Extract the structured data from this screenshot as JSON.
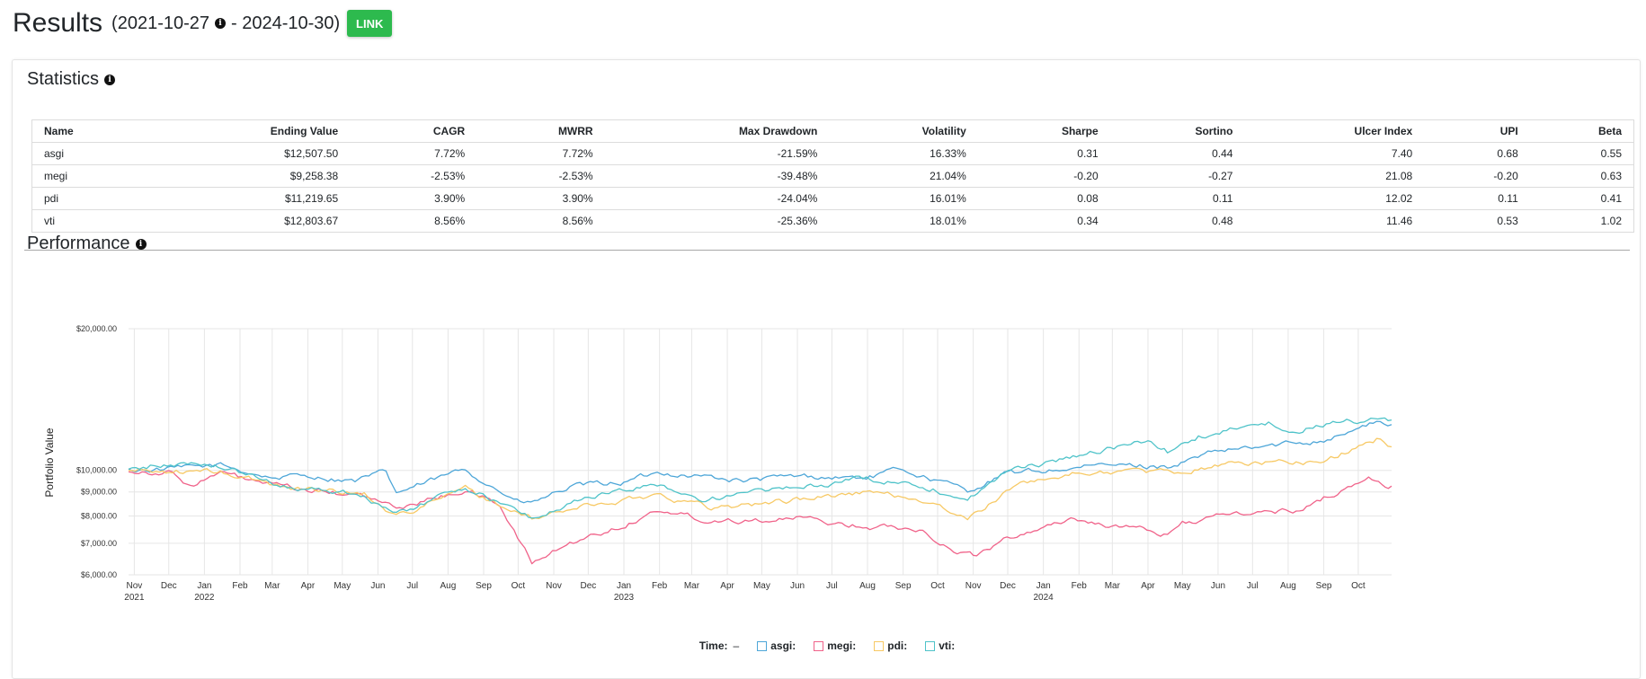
{
  "header": {
    "title": "Results",
    "range_open": "(2021-10-27",
    "range_close": "- 2024-10-30)",
    "link_label": "LINK"
  },
  "statistics": {
    "title": "Statistics",
    "columns": [
      "Name",
      "Ending Value",
      "CAGR",
      "MWRR",
      "Max Drawdown",
      "Volatility",
      "Sharpe",
      "Sortino",
      "Ulcer Index",
      "UPI",
      "Beta"
    ],
    "rows": [
      [
        "asgi",
        "$12,507.50",
        "7.72%",
        "7.72%",
        "-21.59%",
        "16.33%",
        "0.31",
        "0.44",
        "7.40",
        "0.68",
        "0.55"
      ],
      [
        "megi",
        "$9,258.38",
        "-2.53%",
        "-2.53%",
        "-39.48%",
        "21.04%",
        "-0.20",
        "-0.27",
        "21.08",
        "-0.20",
        "0.63"
      ],
      [
        "pdi",
        "$11,219.65",
        "3.90%",
        "3.90%",
        "-24.04%",
        "16.01%",
        "0.08",
        "0.11",
        "12.02",
        "0.11",
        "0.41"
      ],
      [
        "vti",
        "$12,803.67",
        "8.56%",
        "8.56%",
        "-25.36%",
        "18.01%",
        "0.34",
        "0.48",
        "11.46",
        "0.53",
        "1.02"
      ]
    ]
  },
  "performance": {
    "title": "Performance",
    "legend": {
      "time_label": "Time:",
      "time_value": "–",
      "items": [
        {
          "label": "asgi:",
          "color": "#4da6d8"
        },
        {
          "label": "megi:",
          "color": "#f0638a"
        },
        {
          "label": "pdi:",
          "color": "#f7c965"
        },
        {
          "label": "vti:",
          "color": "#4fc3c9"
        }
      ]
    }
  },
  "chart_data": {
    "type": "line",
    "ylabel": "Portfolio Value",
    "yscale": "log",
    "ylim": [
      6000,
      20000
    ],
    "ytick_labels": [
      "$20,000.00",
      "$10,000.00",
      "$9,000.00",
      "$8,000.00",
      "$7,000.00",
      "$6,000.00"
    ],
    "ytick_values": [
      20000,
      10000,
      9000,
      8000,
      7000,
      6000
    ],
    "xlim": [
      "2021-10-27",
      "2024-10-30"
    ],
    "xticks": [
      {
        "date": "2021-11-01",
        "label": "Nov",
        "year": "2021"
      },
      {
        "date": "2021-12-01",
        "label": "Dec"
      },
      {
        "date": "2022-01-01",
        "label": "Jan",
        "year": "2022"
      },
      {
        "date": "2022-02-01",
        "label": "Feb"
      },
      {
        "date": "2022-03-01",
        "label": "Mar"
      },
      {
        "date": "2022-04-01",
        "label": "Apr"
      },
      {
        "date": "2022-05-01",
        "label": "May"
      },
      {
        "date": "2022-06-01",
        "label": "Jun"
      },
      {
        "date": "2022-07-01",
        "label": "Jul"
      },
      {
        "date": "2022-08-01",
        "label": "Aug"
      },
      {
        "date": "2022-09-01",
        "label": "Sep"
      },
      {
        "date": "2022-10-01",
        "label": "Oct"
      },
      {
        "date": "2022-11-01",
        "label": "Nov"
      },
      {
        "date": "2022-12-01",
        "label": "Dec"
      },
      {
        "date": "2023-01-01",
        "label": "Jan",
        "year": "2023"
      },
      {
        "date": "2023-02-01",
        "label": "Feb"
      },
      {
        "date": "2023-03-01",
        "label": "Mar"
      },
      {
        "date": "2023-04-01",
        "label": "Apr"
      },
      {
        "date": "2023-05-01",
        "label": "May"
      },
      {
        "date": "2023-06-01",
        "label": "Jun"
      },
      {
        "date": "2023-07-01",
        "label": "Jul"
      },
      {
        "date": "2023-08-01",
        "label": "Aug"
      },
      {
        "date": "2023-09-01",
        "label": "Sep"
      },
      {
        "date": "2023-10-01",
        "label": "Oct"
      },
      {
        "date": "2023-11-01",
        "label": "Nov"
      },
      {
        "date": "2023-12-01",
        "label": "Dec"
      },
      {
        "date": "2024-01-01",
        "label": "Jan",
        "year": "2024"
      },
      {
        "date": "2024-02-01",
        "label": "Feb"
      },
      {
        "date": "2024-03-01",
        "label": "Mar"
      },
      {
        "date": "2024-04-01",
        "label": "Apr"
      },
      {
        "date": "2024-05-01",
        "label": "May"
      },
      {
        "date": "2024-06-01",
        "label": "Jun"
      },
      {
        "date": "2024-07-01",
        "label": "Jul"
      },
      {
        "date": "2024-08-01",
        "label": "Aug"
      },
      {
        "date": "2024-09-01",
        "label": "Sep"
      },
      {
        "date": "2024-10-01",
        "label": "Oct"
      }
    ],
    "grid": true,
    "series": [
      {
        "name": "asgi",
        "color": "#4da6d8",
        "x": [
          "2021-10-27",
          "2021-12-15",
          "2022-01-15",
          "2022-03-01",
          "2022-04-01",
          "2022-05-12",
          "2022-06-08",
          "2022-06-17",
          "2022-08-16",
          "2022-09-30",
          "2022-10-12",
          "2022-11-15",
          "2023-01-01",
          "2023-02-02",
          "2023-03-15",
          "2023-04-15",
          "2023-06-01",
          "2023-07-31",
          "2023-09-01",
          "2023-10-27",
          "2023-12-01",
          "2024-01-15",
          "2024-03-01",
          "2024-04-18",
          "2024-06-01",
          "2024-07-15",
          "2024-09-01",
          "2024-10-17",
          "2024-10-30"
        ],
        "values": [
          10000,
          10100,
          10250,
          9650,
          9750,
          9500,
          9900,
          8950,
          10050,
          8600,
          8500,
          9200,
          9450,
          9900,
          9700,
          9500,
          9700,
          9650,
          10050,
          9050,
          9850,
          10050,
          10250,
          10200,
          10950,
          11250,
          11650,
          12650,
          12510
        ]
      },
      {
        "name": "megi",
        "color": "#f0638a",
        "x": [
          "2021-10-27",
          "2021-12-01",
          "2021-12-20",
          "2022-01-15",
          "2022-03-08",
          "2022-05-20",
          "2022-06-17",
          "2022-08-16",
          "2022-09-15",
          "2022-10-13",
          "2022-11-15",
          "2022-12-15",
          "2023-02-02",
          "2023-03-15",
          "2023-05-31",
          "2023-07-31",
          "2023-09-15",
          "2023-10-18",
          "2023-11-01",
          "2023-12-15",
          "2024-01-25",
          "2024-04-18",
          "2024-05-01",
          "2024-06-20",
          "2024-08-05",
          "2024-10-10",
          "2024-10-30"
        ],
        "values": [
          10000,
          9900,
          9300,
          9850,
          9200,
          8800,
          8300,
          9100,
          8450,
          6350,
          7000,
          7400,
          8250,
          7850,
          7900,
          7600,
          7550,
          6700,
          6600,
          7400,
          7900,
          7300,
          7750,
          8100,
          8200,
          9600,
          9260
        ]
      },
      {
        "name": "pdi",
        "color": "#f7c965",
        "x": [
          "2021-10-27",
          "2022-01-15",
          "2022-03-08",
          "2022-05-20",
          "2022-06-17",
          "2022-08-16",
          "2022-10-13",
          "2022-11-15",
          "2023-02-02",
          "2023-03-15",
          "2023-05-01",
          "2023-07-31",
          "2023-09-15",
          "2023-10-27",
          "2023-12-15",
          "2024-02-01",
          "2024-03-15",
          "2024-04-18",
          "2024-06-01",
          "2024-07-15",
          "2024-09-01",
          "2024-10-17",
          "2024-10-30"
        ],
        "values": [
          10000,
          9900,
          9250,
          8950,
          8000,
          9150,
          7850,
          8300,
          8900,
          8350,
          8500,
          9000,
          8700,
          7850,
          9500,
          9850,
          10000,
          9850,
          10300,
          10400,
          10450,
          11650,
          11220
        ]
      },
      {
        "name": "vti",
        "color": "#4fc3c9",
        "x": [
          "2021-10-27",
          "2021-11-15",
          "2022-01-04",
          "2022-03-08",
          "2022-05-20",
          "2022-06-17",
          "2022-08-16",
          "2022-10-13",
          "2022-12-01",
          "2023-02-02",
          "2023-03-10",
          "2023-05-01",
          "2023-07-31",
          "2023-09-15",
          "2023-10-27",
          "2023-12-01",
          "2024-01-15",
          "2024-04-01",
          "2024-04-18",
          "2024-05-15",
          "2024-07-15",
          "2024-07-24",
          "2024-09-15",
          "2024-10-30"
        ],
        "values": [
          10000,
          10200,
          10400,
          9300,
          8900,
          8050,
          9250,
          7900,
          8800,
          9350,
          8650,
          9000,
          9600,
          9350,
          8700,
          9950,
          10550,
          11550,
          10950,
          11800,
          12600,
          12050,
          12700,
          12800
        ]
      }
    ]
  }
}
